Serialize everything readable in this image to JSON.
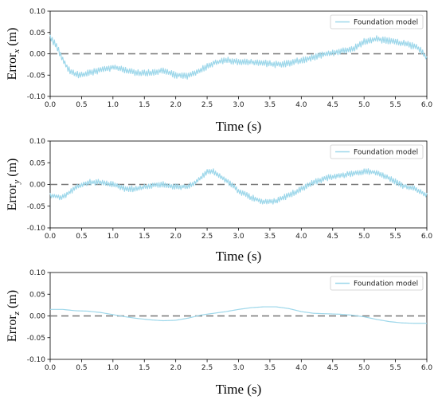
{
  "chart_data": [
    {
      "type": "line",
      "xlabel": "Time (s)",
      "ylabel": "Error",
      "ylabel_sub": "x",
      "ylabel_unit": "(m)",
      "xlim": [
        0.0,
        6.0
      ],
      "ylim": [
        -0.1,
        0.1
      ],
      "xticks": [
        "0.0",
        "0.5",
        "1.0",
        "1.5",
        "2.0",
        "2.5",
        "3.0",
        "3.5",
        "4.0",
        "4.5",
        "5.0",
        "5.5",
        "6.0"
      ],
      "yticks": [
        "-0.10",
        "-0.05",
        "0.00",
        "0.05",
        "0.10"
      ],
      "legend": {
        "label": "Foundation model",
        "position": "upper right"
      },
      "line_color": "#9dd7ea",
      "reference_line": {
        "y": 0.0,
        "style": "dashed",
        "color": "#777777"
      },
      "series": [
        {
          "name": "Foundation model",
          "noise": 0.008,
          "x": [
            0.0,
            0.1,
            0.2,
            0.3,
            0.4,
            0.5,
            0.7,
            0.9,
            1.0,
            1.2,
            1.4,
            1.6,
            1.8,
            2.0,
            2.2,
            2.4,
            2.6,
            2.8,
            3.0,
            3.2,
            3.4,
            3.6,
            3.8,
            4.0,
            4.2,
            4.4,
            4.6,
            4.8,
            5.0,
            5.2,
            5.4,
            5.6,
            5.8,
            5.9,
            6.0
          ],
          "y": [
            0.038,
            0.02,
            -0.015,
            -0.038,
            -0.048,
            -0.05,
            -0.042,
            -0.035,
            -0.032,
            -0.038,
            -0.045,
            -0.045,
            -0.038,
            -0.05,
            -0.052,
            -0.038,
            -0.022,
            -0.015,
            -0.018,
            -0.02,
            -0.022,
            -0.025,
            -0.022,
            -0.015,
            -0.008,
            0.0,
            0.005,
            0.01,
            0.028,
            0.035,
            0.03,
            0.025,
            0.018,
            0.01,
            -0.012
          ]
        }
      ]
    },
    {
      "type": "line",
      "xlabel": "Time (s)",
      "ylabel": "Error",
      "ylabel_sub": "y",
      "ylabel_unit": "(m)",
      "xlim": [
        0.0,
        6.0
      ],
      "ylim": [
        -0.1,
        0.1
      ],
      "xticks": [
        "0.0",
        "0.5",
        "1.0",
        "1.5",
        "2.0",
        "2.5",
        "3.0",
        "3.5",
        "4.0",
        "4.5",
        "5.0",
        "5.5",
        "6.0"
      ],
      "yticks": [
        "-0.10",
        "-0.05",
        "0.00",
        "0.05",
        "0.10"
      ],
      "legend": {
        "label": "Foundation model",
        "position": "upper right"
      },
      "line_color": "#9dd7ea",
      "reference_line": {
        "y": 0.0,
        "style": "dashed",
        "color": "#777777"
      },
      "series": [
        {
          "name": "Foundation model",
          "noise": 0.007,
          "x": [
            0.0,
            0.2,
            0.4,
            0.6,
            0.8,
            1.0,
            1.2,
            1.4,
            1.6,
            1.8,
            2.0,
            2.2,
            2.4,
            2.5,
            2.6,
            2.8,
            3.0,
            3.2,
            3.4,
            3.6,
            3.8,
            4.0,
            4.2,
            4.4,
            4.6,
            4.8,
            5.0,
            5.2,
            5.4,
            5.6,
            5.8,
            6.0
          ],
          "y": [
            -0.025,
            -0.03,
            -0.008,
            0.005,
            0.005,
            0.0,
            -0.01,
            -0.01,
            -0.002,
            0.0,
            -0.005,
            -0.005,
            0.015,
            0.028,
            0.03,
            0.01,
            -0.015,
            -0.03,
            -0.04,
            -0.038,
            -0.025,
            -0.01,
            0.005,
            0.015,
            0.02,
            0.025,
            0.03,
            0.028,
            0.015,
            -0.002,
            -0.01,
            -0.025
          ]
        }
      ]
    },
    {
      "type": "line",
      "xlabel": "Time (s)",
      "ylabel": "Error",
      "ylabel_sub": "z",
      "ylabel_unit": "(m)",
      "xlim": [
        0.0,
        6.0
      ],
      "ylim": [
        -0.1,
        0.1
      ],
      "xticks": [
        "0.0",
        "0.5",
        "1.0",
        "1.5",
        "2.0",
        "2.5",
        "3.0",
        "3.5",
        "4.0",
        "4.5",
        "5.0",
        "5.5",
        "6.0"
      ],
      "yticks": [
        "-0.10",
        "-0.05",
        "0.00",
        "0.05",
        "0.10"
      ],
      "legend": {
        "label": "Foundation model",
        "position": "upper right"
      },
      "line_color": "#9dd7ea",
      "reference_line": {
        "y": 0.0,
        "style": "dashed",
        "color": "#777777"
      },
      "series": [
        {
          "name": "Foundation model",
          "noise": 0.0,
          "x": [
            0.0,
            0.2,
            0.4,
            0.6,
            0.8,
            1.0,
            1.2,
            1.4,
            1.6,
            1.8,
            2.0,
            2.2,
            2.4,
            2.6,
            2.8,
            3.0,
            3.2,
            3.4,
            3.6,
            3.8,
            4.0,
            4.2,
            4.4,
            4.6,
            4.8,
            5.0,
            5.2,
            5.4,
            5.6,
            5.8,
            6.0
          ],
          "y": [
            0.015,
            0.015,
            0.012,
            0.011,
            0.008,
            0.003,
            -0.002,
            -0.006,
            -0.009,
            -0.011,
            -0.01,
            -0.005,
            0.002,
            0.006,
            0.01,
            0.015,
            0.019,
            0.021,
            0.021,
            0.017,
            0.01,
            0.006,
            0.005,
            0.004,
            0.002,
            -0.002,
            -0.008,
            -0.013,
            -0.016,
            -0.017,
            -0.017
          ]
        }
      ]
    }
  ]
}
